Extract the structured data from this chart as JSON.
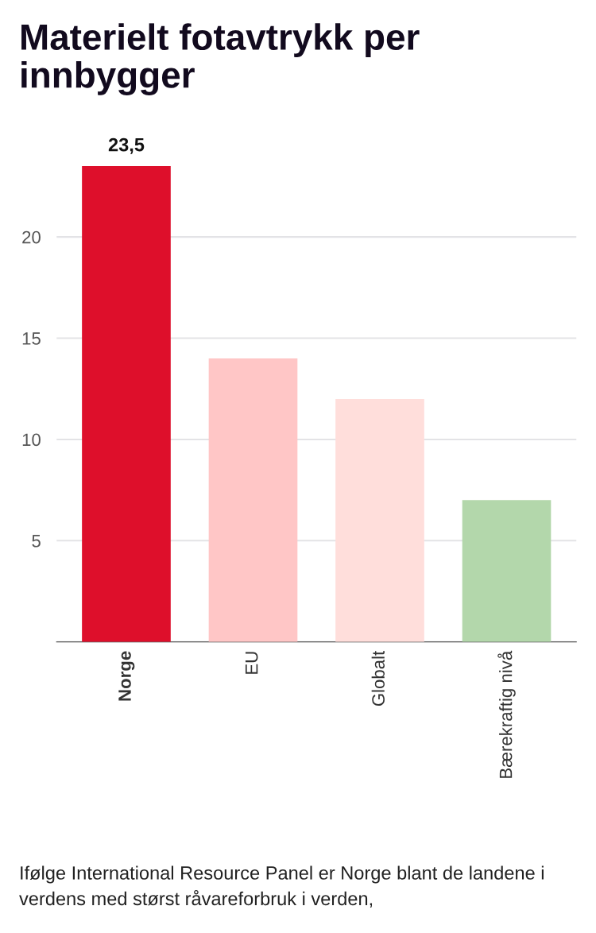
{
  "chart_data": {
    "type": "bar",
    "title": "Materielt fotavtrykk per innbygger",
    "categories": [
      "Norge",
      "EU",
      "Globalt",
      "Bærekraftig nivå"
    ],
    "values": [
      23.5,
      14,
      12,
      7
    ],
    "colors": [
      "#de0f2b",
      "#ffc6c6",
      "#ffdedb",
      "#b3d7ab"
    ],
    "value_labels": [
      "23,5",
      null,
      null,
      null
    ],
    "ylim": [
      0,
      23.5
    ],
    "yticks": [
      {
        "value": 0,
        "label": null
      },
      5,
      10,
      15,
      20
    ],
    "grid": "y",
    "annotations": [
      "Ifølge International Resource Panel er Norge blant de landene i verdens med størst råvareforbruk i verden,"
    ]
  }
}
